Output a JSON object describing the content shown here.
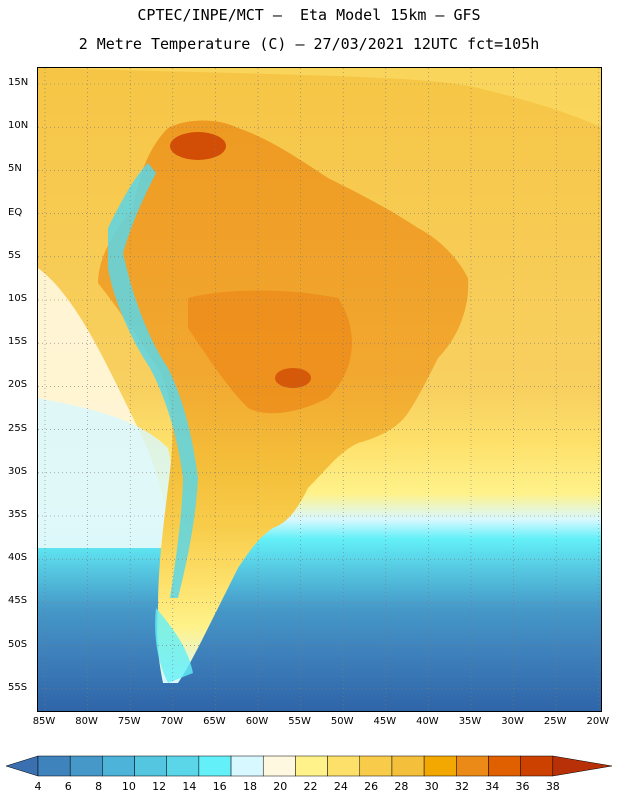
{
  "header": {
    "line1": "CPTEC/INPE/MCT –  Eta Model 15km – GFS",
    "line2": "2 Metre Temperature (C) – 27/03/2021 12UTC fct=105h"
  },
  "axes": {
    "lat_labels": [
      "15N",
      "10N",
      "5N",
      "EQ",
      "5S",
      "10S",
      "15S",
      "20S",
      "25S",
      "30S",
      "35S",
      "40S",
      "45S",
      "50S",
      "55S"
    ],
    "lon_labels": [
      "85W",
      "80W",
      "75W",
      "70W",
      "65W",
      "60W",
      "55W",
      "50W",
      "45W",
      "40W",
      "35W",
      "30W",
      "25W",
      "20W"
    ]
  },
  "colorbar": {
    "labels": [
      "4",
      "6",
      "8",
      "10",
      "12",
      "14",
      "16",
      "18",
      "20",
      "22",
      "24",
      "26",
      "28",
      "30",
      "32",
      "34",
      "36",
      "38"
    ],
    "colors": [
      "#3a6fb0",
      "#3f83bd",
      "#4598c8",
      "#4db3d8",
      "#55c6e0",
      "#5bd6e8",
      "#63f0f8",
      "#d8f8ff",
      "#fff8e0",
      "#fff28a",
      "#fde06a",
      "#f8cc4a",
      "#f4bf3a",
      "#f2a800",
      "#ec8a18",
      "#e06000",
      "#cc4000",
      "#b83008"
    ]
  },
  "colors": {
    "ocean_warm": "#f8cc4a",
    "land_hot": "#ec8a18",
    "ocean_cold": "#2e64a8",
    "andes": "#5bd6e8"
  }
}
